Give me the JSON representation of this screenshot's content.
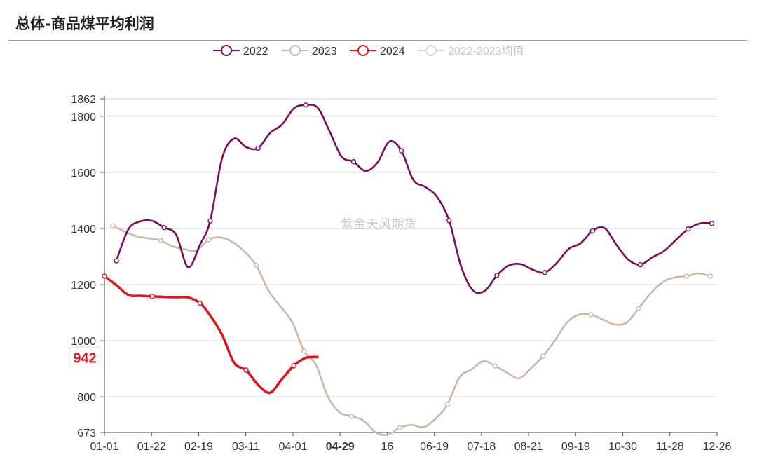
{
  "title": "总体-商品煤平均利润",
  "watermark": "紫金天风期货",
  "colors": {
    "s2022": "#7b0c5a",
    "s2023": "#c9b9a6",
    "s2024": "#e0141e",
    "avg": "#d7d7d7",
    "grid": "#d4d4d4"
  },
  "chart_data": {
    "type": "line",
    "title": "总体-商品煤平均利润",
    "xlabel": "",
    "ylabel": "",
    "ylim": [
      673,
      1862
    ],
    "yticks": [
      673,
      800,
      1000,
      1200,
      1400,
      1600,
      1800,
      1862
    ],
    "x_range": [
      "01-01",
      "12-26"
    ],
    "x_ticks": [
      "01-01",
      "01-22",
      "02-19",
      "03-11",
      "04-01",
      "04-29",
      "16",
      "06-19",
      "07-18",
      "08-21",
      "09-19",
      "10-30",
      "11-28",
      "12-26"
    ],
    "highlight_x_tick": "04-29",
    "end_label": "942",
    "legend_position": "top",
    "grid": true,
    "series": [
      {
        "name": "2022",
        "color": "#7b0c5a",
        "points": [
          [
            "01-08",
            1285
          ],
          [
            "01-15",
            1397
          ],
          [
            "01-22",
            1425
          ],
          [
            "01-29",
            1427
          ],
          [
            "02-05",
            1403
          ],
          [
            "02-12",
            1378
          ],
          [
            "02-19",
            1262
          ],
          [
            "02-26",
            1342
          ],
          [
            "03-04",
            1427
          ],
          [
            "03-11",
            1652
          ],
          [
            "03-18",
            1720
          ],
          [
            "03-25",
            1690
          ],
          [
            "04-01",
            1686
          ],
          [
            "04-08",
            1740
          ],
          [
            "04-15",
            1770
          ],
          [
            "04-22",
            1828
          ],
          [
            "04-29",
            1840
          ],
          [
            "05-06",
            1830
          ],
          [
            "05-13",
            1745
          ],
          [
            "05-20",
            1656
          ],
          [
            "05-27",
            1638
          ],
          [
            "06-03",
            1605
          ],
          [
            "06-10",
            1635
          ],
          [
            "06-17",
            1710
          ],
          [
            "06-24",
            1677
          ],
          [
            "07-01",
            1573
          ],
          [
            "07-08",
            1548
          ],
          [
            "07-15",
            1512
          ],
          [
            "07-22",
            1428
          ],
          [
            "07-29",
            1265
          ],
          [
            "08-05",
            1179
          ],
          [
            "08-12",
            1178
          ],
          [
            "08-19",
            1233
          ],
          [
            "08-26",
            1268
          ],
          [
            "09-02",
            1273
          ],
          [
            "09-09",
            1253
          ],
          [
            "09-16",
            1243
          ],
          [
            "09-23",
            1277
          ],
          [
            "09-30",
            1327
          ],
          [
            "10-07",
            1347
          ],
          [
            "10-14",
            1391
          ],
          [
            "10-21",
            1402
          ],
          [
            "10-28",
            1342
          ],
          [
            "11-04",
            1289
          ],
          [
            "11-11",
            1271
          ],
          [
            "11-18",
            1297
          ],
          [
            "11-25",
            1320
          ],
          [
            "12-02",
            1360
          ],
          [
            "12-09",
            1398
          ],
          [
            "12-16",
            1418
          ],
          [
            "12-23",
            1418
          ]
        ]
      },
      {
        "name": "2023",
        "color": "#c9b9a6",
        "points": [
          [
            "01-06",
            1409
          ],
          [
            "01-13",
            1389
          ],
          [
            "01-20",
            1372
          ],
          [
            "01-27",
            1365
          ],
          [
            "02-03",
            1357
          ],
          [
            "02-10",
            1336
          ],
          [
            "02-17",
            1326
          ],
          [
            "02-24",
            1322
          ],
          [
            "03-03",
            1360
          ],
          [
            "03-10",
            1368
          ],
          [
            "03-17",
            1352
          ],
          [
            "03-24",
            1318
          ],
          [
            "03-31",
            1268
          ],
          [
            "04-07",
            1180
          ],
          [
            "04-14",
            1123
          ],
          [
            "04-21",
            1067
          ],
          [
            "04-28",
            963
          ],
          [
            "05-05",
            913
          ],
          [
            "05-12",
            800
          ],
          [
            "05-19",
            744
          ],
          [
            "05-26",
            731
          ],
          [
            "06-02",
            715
          ],
          [
            "06-09",
            673
          ],
          [
            "06-16",
            665
          ],
          [
            "06-23",
            690
          ],
          [
            "06-30",
            700
          ],
          [
            "07-07",
            692
          ],
          [
            "07-14",
            722
          ],
          [
            "07-21",
            773
          ],
          [
            "07-28",
            869
          ],
          [
            "08-04",
            897
          ],
          [
            "08-11",
            927
          ],
          [
            "08-18",
            910
          ],
          [
            "08-25",
            886
          ],
          [
            "09-01",
            866
          ],
          [
            "09-08",
            902
          ],
          [
            "09-15",
            945
          ],
          [
            "09-22",
            1001
          ],
          [
            "09-29",
            1065
          ],
          [
            "10-06",
            1093
          ],
          [
            "10-13",
            1093
          ],
          [
            "10-20",
            1076
          ],
          [
            "10-27",
            1058
          ],
          [
            "11-03",
            1065
          ],
          [
            "11-10",
            1115
          ],
          [
            "11-17",
            1168
          ],
          [
            "11-24",
            1208
          ],
          [
            "12-01",
            1225
          ],
          [
            "12-08",
            1230
          ],
          [
            "12-15",
            1240
          ],
          [
            "12-22",
            1230
          ]
        ]
      },
      {
        "name": "2024",
        "color": "#e0141e",
        "points": [
          [
            "01-01",
            1230
          ],
          [
            "01-08",
            1198
          ],
          [
            "01-15",
            1163
          ],
          [
            "01-22",
            1160
          ],
          [
            "01-29",
            1158
          ],
          [
            "02-05",
            1156
          ],
          [
            "02-12",
            1155
          ],
          [
            "02-19",
            1154
          ],
          [
            "02-26",
            1134
          ],
          [
            "03-04",
            1090
          ],
          [
            "03-11",
            1020
          ],
          [
            "03-18",
            921
          ],
          [
            "03-25",
            895
          ],
          [
            "04-01",
            843
          ],
          [
            "04-08",
            815
          ],
          [
            "04-15",
            863
          ],
          [
            "04-22",
            911
          ],
          [
            "04-29",
            939
          ],
          [
            "05-06",
            942
          ]
        ]
      },
      {
        "name": "2022-2023均值",
        "color": "#d7d7d7",
        "points": []
      }
    ]
  }
}
